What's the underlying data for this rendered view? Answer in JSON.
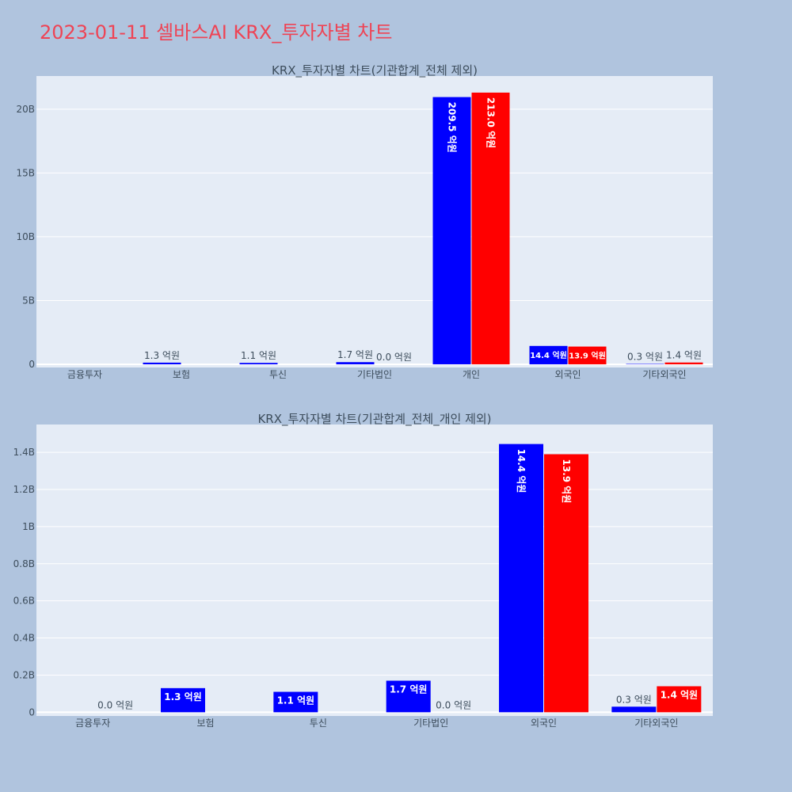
{
  "title": "2023-01-11 셀바스AI KRX_투자자별 차트",
  "colors": {
    "background": "#b0c4de",
    "plot_bg": "#e5ecf6",
    "series_a": "#0000ff",
    "series_b": "#ff0000",
    "title": "#ee4455"
  },
  "chart_data": [
    {
      "type": "bar",
      "title": "KRX_투자자별 차트(기관합계_전체 제외)",
      "categories": [
        "금융투자",
        "보험",
        "투신",
        "기타법인",
        "개인",
        "외국인",
        "기타외국인"
      ],
      "series": [
        {
          "color": "#0000ff",
          "values": [
            0,
            0.13,
            0.11,
            0.17,
            20.95,
            1.44,
            0.03
          ],
          "labels": [
            "",
            "1.3 억원",
            "1.1 억원",
            "1.7 억원",
            "209.5 억원",
            "14.4 억원",
            "0.3 억원"
          ]
        },
        {
          "color": "#ff0000",
          "values": [
            0,
            0,
            0,
            0,
            21.3,
            1.39,
            0.14
          ],
          "labels": [
            "",
            "",
            "",
            "0.0 억원",
            "213.0 억원",
            "13.9 억원",
            "1.4 억원"
          ]
        }
      ],
      "ylim": [
        -0.25,
        22.6
      ],
      "yticks": [
        0,
        5,
        10,
        15,
        20
      ],
      "ytick_labels": [
        "0",
        "5B",
        "10B",
        "15B",
        "20B"
      ],
      "grid": true
    },
    {
      "type": "bar",
      "title": "KRX_투자자별 차트(기관합계_전체_개인 제외)",
      "categories": [
        "금융투자",
        "보험",
        "투신",
        "기타법인",
        "외국인",
        "기타외국인"
      ],
      "series": [
        {
          "color": "#0000ff",
          "values": [
            0,
            0.13,
            0.11,
            0.17,
            1.445,
            0.03
          ],
          "labels": [
            "",
            "1.3 억원",
            "1.1 억원",
            "1.7 억원",
            "14.4 억원",
            "0.3 억원"
          ]
        },
        {
          "color": "#ff0000",
          "values": [
            0,
            0,
            0,
            0,
            1.39,
            0.14
          ],
          "labels": [
            "0.0 억원",
            "",
            "",
            "0.0 억원",
            "13.9 억원",
            "1.4 억원"
          ]
        }
      ],
      "ylim": [
        -0.02,
        1.55
      ],
      "yticks": [
        0,
        0.2,
        0.4,
        0.6,
        0.8,
        1.0,
        1.2,
        1.4
      ],
      "ytick_labels": [
        "0",
        "0.2B",
        "0.4B",
        "0.6B",
        "0.8B",
        "1B",
        "1.2B",
        "1.4B"
      ],
      "grid": true
    }
  ]
}
